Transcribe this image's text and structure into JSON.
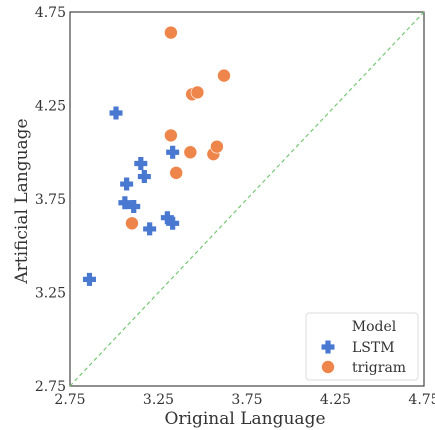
{
  "chart_data": {
    "type": "scatter",
    "xlabel": "Original Language",
    "ylabel": "Artificial Language",
    "xlim": [
      2.75,
      4.75
    ],
    "ylim": [
      2.75,
      4.75
    ],
    "xticks": [
      "2.75",
      "3.25",
      "3.75",
      "4.25",
      "4.75"
    ],
    "yticks": [
      "2.75",
      "3.25",
      "3.75",
      "4.25",
      "4.75"
    ],
    "grid": false,
    "reference_line": {
      "from": [
        2.75,
        2.75
      ],
      "to": [
        4.75,
        4.75
      ],
      "color": "#77c777",
      "style": "dashed"
    },
    "legend": {
      "title": "Model",
      "placement": "bottom-right"
    },
    "series": [
      {
        "name": "LSTM",
        "marker": "plus",
        "color": "#4878cf",
        "points": [
          [
            2.86,
            3.32
          ],
          [
            3.01,
            4.21
          ],
          [
            3.06,
            3.73
          ],
          [
            3.07,
            3.83
          ],
          [
            3.11,
            3.71
          ],
          [
            3.15,
            3.94
          ],
          [
            3.17,
            3.87
          ],
          [
            3.2,
            3.59
          ],
          [
            3.3,
            3.65
          ],
          [
            3.33,
            4.0
          ],
          [
            3.33,
            3.62
          ]
        ]
      },
      {
        "name": "trigram",
        "marker": "circle",
        "color": "#ee854a",
        "points": [
          [
            3.1,
            3.62
          ],
          [
            3.32,
            4.64
          ],
          [
            3.32,
            4.09
          ],
          [
            3.35,
            3.89
          ],
          [
            3.43,
            4.0
          ],
          [
            3.44,
            4.31
          ],
          [
            3.47,
            4.32
          ],
          [
            3.56,
            3.99
          ],
          [
            3.58,
            4.03
          ],
          [
            3.62,
            4.41
          ]
        ]
      }
    ]
  }
}
